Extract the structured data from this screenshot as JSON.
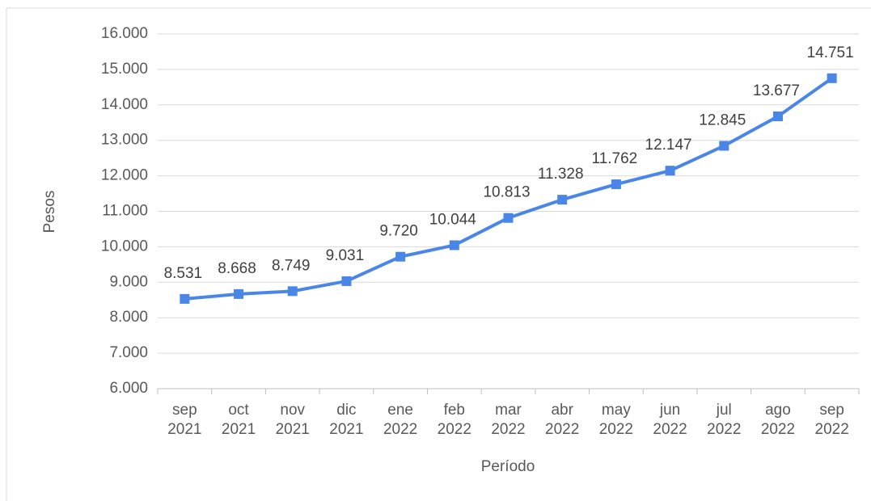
{
  "chart_data": {
    "type": "line",
    "x_label": "Período",
    "y_label": "Pesos",
    "categories": [
      "sep 2021",
      "oct 2021",
      "nov 2021",
      "dic 2021",
      "ene 2022",
      "feb 2022",
      "mar 2022",
      "abr 2022",
      "may 2022",
      "jun 2022",
      "jul 2022",
      "ago 2022",
      "sep 2022"
    ],
    "series": [
      {
        "color": "#4a86e8",
        "values": [
          8531,
          8668,
          8749,
          9031,
          9720,
          10044,
          10813,
          11328,
          11762,
          12147,
          12845,
          13677,
          14751
        ],
        "value_labels": [
          "8.531",
          "8.668",
          "8.749",
          "9.031",
          "9.720",
          "10.044",
          "10.813",
          "11.328",
          "11.762",
          "12.147",
          "12.845",
          "13.677",
          "14.751"
        ]
      }
    ],
    "ylim": [
      6000,
      16000
    ],
    "yticks": [
      {
        "value": 6000,
        "label": "6.000"
      },
      {
        "value": 7000,
        "label": "7.000"
      },
      {
        "value": 8000,
        "label": "8.000"
      },
      {
        "value": 9000,
        "label": "9.000"
      },
      {
        "value": 10000,
        "label": "10.000"
      },
      {
        "value": 11000,
        "label": "11.000"
      },
      {
        "value": 12000,
        "label": "12.000"
      },
      {
        "value": 13000,
        "label": "13.000"
      },
      {
        "value": 14000,
        "label": "14.000"
      },
      {
        "value": 15000,
        "label": "15.000"
      },
      {
        "value": 16000,
        "label": "16.000"
      }
    ],
    "grid": true
  }
}
